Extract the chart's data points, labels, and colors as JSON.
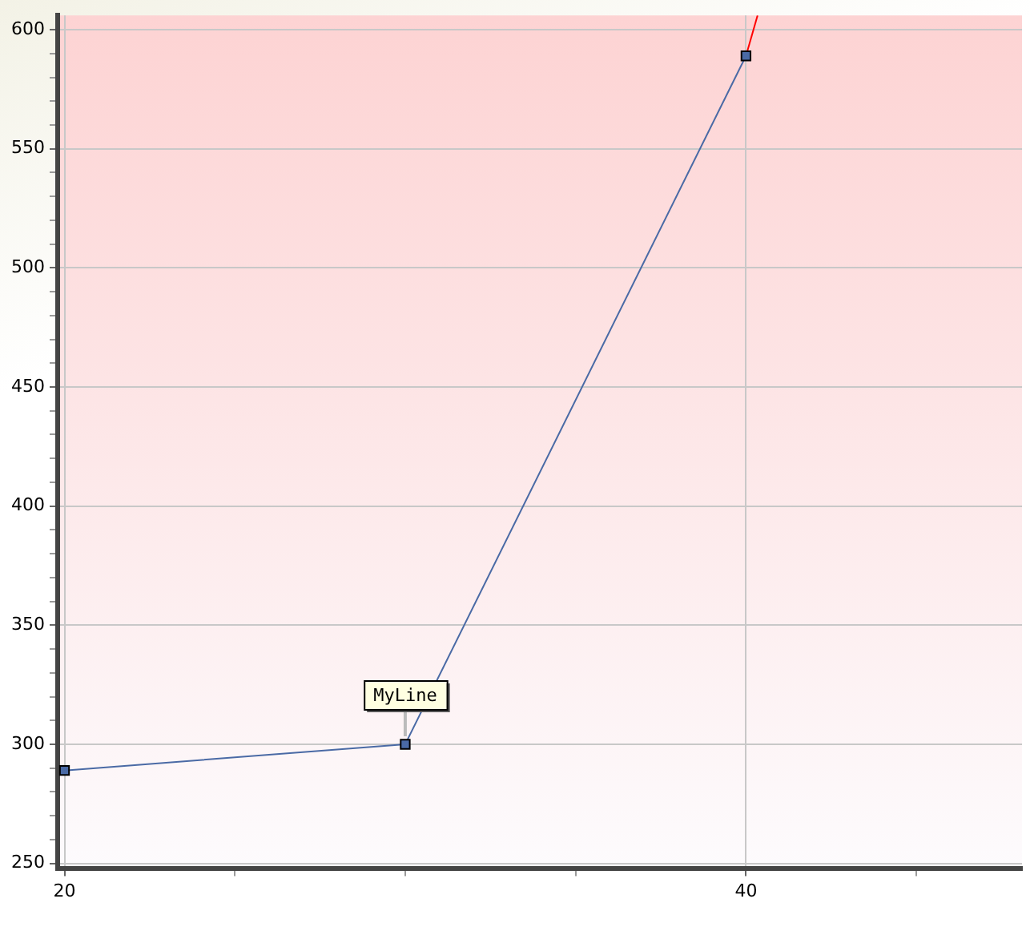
{
  "chart_data": {
    "type": "line",
    "series": [
      {
        "name": "MyLine",
        "color": "#4a6aa5",
        "x": [
          20,
          30,
          40
        ],
        "values": [
          289,
          300,
          589
        ],
        "marker": "square"
      },
      {
        "color": "#ff0000",
        "x": [
          40,
          40.34
        ],
        "values": [
          589,
          606
        ],
        "marker": "none"
      }
    ],
    "xlim": [
      19.8,
      48.1
    ],
    "xticks": [
      20,
      {
        "value": 25,
        "label": null
      },
      {
        "value": 30,
        "label": null
      },
      {
        "value": 35,
        "label": null
      },
      40,
      {
        "value": 45,
        "label": null
      }
    ],
    "ylim": [
      248,
      606
    ],
    "yticks": [
      250,
      {
        "value": 260,
        "label": null
      },
      {
        "value": 270,
        "label": null
      },
      {
        "value": 280,
        "label": null
      },
      {
        "value": 290,
        "label": null
      },
      300,
      {
        "value": 310,
        "label": null
      },
      {
        "value": 320,
        "label": null
      },
      {
        "value": 330,
        "label": null
      },
      {
        "value": 340,
        "label": null
      },
      350,
      {
        "value": 360,
        "label": null
      },
      {
        "value": 370,
        "label": null
      },
      {
        "value": 380,
        "label": null
      },
      {
        "value": 390,
        "label": null
      },
      400,
      {
        "value": 410,
        "label": null
      },
      {
        "value": 420,
        "label": null
      },
      {
        "value": 430,
        "label": null
      },
      {
        "value": 440,
        "label": null
      },
      450,
      {
        "value": 460,
        "label": null
      },
      {
        "value": 470,
        "label": null
      },
      {
        "value": 480,
        "label": null
      },
      {
        "value": 490,
        "label": null
      },
      500,
      {
        "value": 510,
        "label": null
      },
      {
        "value": 520,
        "label": null
      },
      {
        "value": 530,
        "label": null
      },
      {
        "value": 540,
        "label": null
      },
      550,
      {
        "value": 560,
        "label": null
      },
      {
        "value": 570,
        "label": null
      },
      {
        "value": 580,
        "label": null
      },
      {
        "value": 590,
        "label": null
      },
      600
    ],
    "grid": true,
    "legend": false,
    "line_style": "solid"
  }
}
